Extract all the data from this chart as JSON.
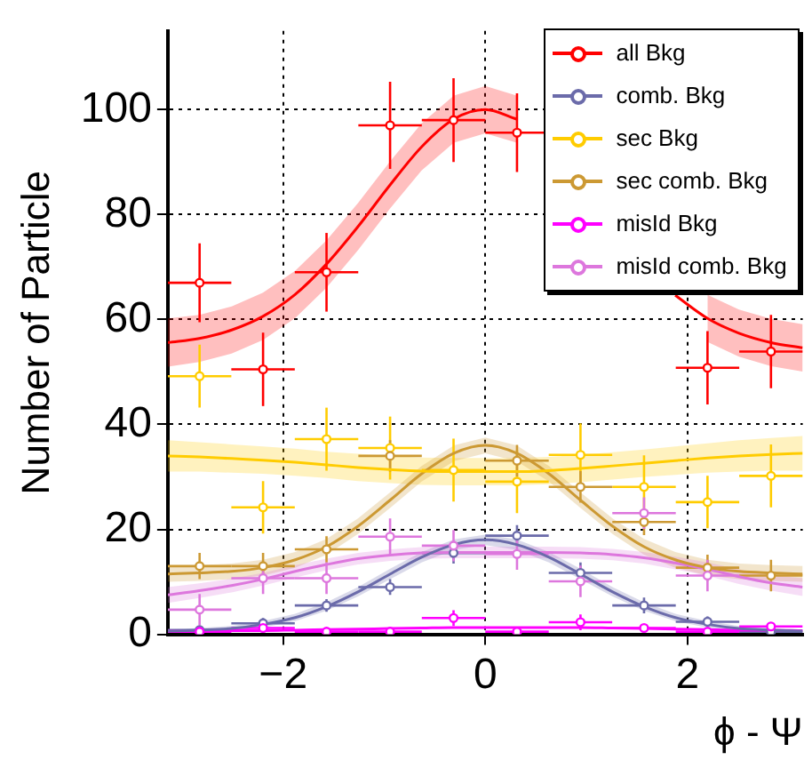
{
  "chart_data": {
    "type": "scatter",
    "xlabel": "ϕ - Ψ",
    "ylabel": "Number of Particle",
    "xlim": [
      -3.1416,
      3.1416
    ],
    "xticks": [
      -2,
      0,
      2
    ],
    "ylim": [
      0,
      115
    ],
    "yticks": [
      0,
      20,
      40,
      60,
      80,
      100
    ],
    "grid": true,
    "legend": "top right",
    "marker": "circle",
    "series": [
      {
        "name": "all Bkg",
        "color": "#ff0000",
        "x": [
          -2.827,
          -2.199,
          -1.571,
          -0.942,
          -0.314,
          0.314,
          0.942,
          1.571,
          2.199,
          2.827
        ],
        "values": [
          67,
          50.5,
          69,
          97,
          98,
          95.6,
          null,
          null,
          50.8,
          53.9
        ],
        "errors": [
          7.5,
          7,
          7.5,
          8.3,
          8,
          7.5,
          null,
          null,
          7,
          7
        ],
        "xerrors": [
          0.314,
          0.314,
          0.314,
          0.314,
          0.314,
          0.314,
          null,
          null,
          0.314,
          0.314
        ]
      },
      {
        "name": "comb. Bkg",
        "color": "#6b6baa",
        "x": [
          -2.827,
          -2.199,
          -1.571,
          -0.942,
          -0.314,
          0.314,
          0.942,
          1.571,
          2.199,
          2.827
        ],
        "values": [
          0.8,
          2.1,
          5.5,
          9,
          15.5,
          18.8,
          11.7,
          5.5,
          2.4,
          0.5
        ],
        "errors": [
          null,
          1,
          1.2,
          1.5,
          2,
          2,
          2,
          1.5,
          1,
          null
        ],
        "xerrors": [
          0.314,
          0.314,
          0.314,
          0.314,
          0.314,
          0.314,
          0.314,
          0.314,
          0.314,
          0.314
        ]
      },
      {
        "name": "sec Bkg",
        "color": "#ffcc00",
        "x": [
          -2.827,
          -2.199,
          -1.571,
          -0.942,
          -0.314,
          0.314,
          0.942,
          1.571,
          2.199,
          2.827
        ],
        "values": [
          49.2,
          24.2,
          37.2,
          35.5,
          31.3,
          29.1,
          34.2,
          28.1,
          25.2,
          30.2
        ],
        "errors": [
          6,
          5,
          6,
          6,
          6,
          6,
          6,
          6,
          5,
          6
        ],
        "xerrors": [
          0.314,
          0.314,
          0.314,
          0.314,
          0.314,
          0.314,
          0.314,
          0.314,
          0.314,
          0.314
        ]
      },
      {
        "name": "sec comb. Bkg",
        "color": "#cc9933",
        "x": [
          -2.827,
          -2.199,
          -1.571,
          -0.942,
          -0.314,
          0.314,
          0.942,
          1.571,
          2.199,
          2.827
        ],
        "values": [
          13,
          13,
          16.2,
          34,
          null,
          33.1,
          28.1,
          21.4,
          12.7,
          11.2
        ],
        "errors": [
          2.5,
          2.5,
          2.5,
          3,
          null,
          3,
          3,
          2.5,
          2.5,
          3
        ],
        "xerrors": [
          0.314,
          0.314,
          0.314,
          0.314,
          null,
          0.314,
          0.314,
          0.314,
          0.314,
          0.314
        ]
      },
      {
        "name": "misId Bkg",
        "color": "#ff00ff",
        "x": [
          -2.827,
          -2.199,
          -1.571,
          -0.942,
          -0.314,
          0.314,
          0.942,
          1.571,
          2.199,
          2.827
        ],
        "values": [
          0.5,
          1.2,
          0.5,
          0.5,
          3.1,
          0.5,
          2.3,
          1.2,
          0.5,
          1.5
        ],
        "errors": [
          null,
          null,
          null,
          null,
          1.5,
          null,
          1.5,
          null,
          null,
          null
        ],
        "xerrors": [
          0.314,
          0.314,
          0.314,
          0.314,
          0.314,
          0.314,
          0.314,
          0.314,
          0.314,
          0.314
        ]
      },
      {
        "name": "misId comb. Bkg",
        "color": "#dd77dd",
        "x": [
          -2.827,
          -2.199,
          -1.571,
          -0.942,
          -0.314,
          0.314,
          0.942,
          1.571,
          2.199
        ],
        "values": [
          4.7,
          10.7,
          10.7,
          18.6,
          16.9,
          15.3,
          10.1,
          23.1,
          11.2
        ],
        "errors": [
          3,
          3,
          3,
          3.5,
          3,
          3,
          3,
          3,
          3
        ],
        "xerrors": [
          0.314,
          0.314,
          0.314,
          0.314,
          0.314,
          0.314,
          0.314,
          0.314,
          0.314
        ]
      },
      {
        "type": "line",
        "marker": "none",
        "color": "#ff0000",
        "x": [
          -3.14,
          -2.83,
          -2.51,
          -2.2,
          -1.88,
          -1.57,
          -1.26,
          -0.94,
          -0.63,
          -0.31,
          0,
          0.31,
          0.63,
          0.94,
          1.26,
          1.57,
          1.88,
          2.2,
          2.51,
          2.83,
          3.14
        ],
        "values": [
          55.6,
          56.4,
          58,
          60.6,
          64.8,
          70.6,
          77.7,
          85.7,
          92.9,
          98.2,
          100,
          98.2,
          null,
          null,
          null,
          null,
          64.6,
          60.2,
          57.4,
          55.6,
          54.6
        ],
        "lower": [
          51,
          51.9,
          53.5,
          56.1,
          60.3,
          66.1,
          73.2,
          81.2,
          88.4,
          93.7,
          95.5,
          93.7,
          null,
          null,
          null,
          null,
          null,
          55.7,
          52.9,
          51.1,
          50.1
        ],
        "upper": [
          60.2,
          60.9,
          62.5,
          65.1,
          69.3,
          75.1,
          82.2,
          90.2,
          97.4,
          102.7,
          104.5,
          102.7,
          null,
          null,
          null,
          null,
          null,
          64.7,
          61.9,
          60.1,
          59.1
        ]
      },
      {
        "type": "line",
        "marker": "none",
        "color": "#6b6baa",
        "x": [
          -3.14,
          -2.83,
          -2.51,
          -2.2,
          -1.88,
          -1.57,
          -1.26,
          -0.94,
          -0.63,
          -0.31,
          0,
          0.31,
          0.63,
          0.94,
          1.26,
          1.57,
          1.88,
          2.2,
          2.51,
          2.83,
          3.14
        ],
        "values": [
          0.6,
          0.8,
          1.1,
          1.9,
          3.2,
          5.3,
          8.1,
          11.5,
          14.7,
          17.1,
          18,
          17.1,
          14.7,
          11.5,
          8.1,
          5.3,
          3.2,
          1.9,
          1.1,
          0.8,
          0.6
        ],
        "lower": [
          0.3,
          0.4,
          0.6,
          1.3,
          2.5,
          4.5,
          7.2,
          10.5,
          13.7,
          16.1,
          17,
          16.1,
          13.7,
          10.5,
          7.2,
          4.5,
          2.5,
          1.3,
          0.6,
          0.4,
          0.3
        ],
        "upper": [
          0.9,
          1.2,
          1.6,
          2.5,
          3.9,
          6.1,
          9,
          12.5,
          15.7,
          18.1,
          19,
          18.1,
          15.7,
          12.5,
          9,
          6.1,
          3.9,
          2.5,
          1.6,
          1.2,
          0.9
        ]
      },
      {
        "type": "line",
        "marker": "none",
        "color": "#ffcc00",
        "x": [
          -3.14,
          -2.83,
          -2.51,
          -2.2,
          -1.88,
          -1.57,
          -1.26,
          -0.94,
          -0.63,
          -0.31,
          0,
          0.31,
          0.63,
          0.94,
          1.26,
          1.57,
          1.88,
          2.2,
          2.51,
          2.83,
          3.14
        ],
        "values": [
          34,
          33.8,
          33.5,
          33.2,
          32.8,
          32.3,
          31.8,
          31.4,
          31.1,
          31,
          31,
          31,
          31.2,
          31.6,
          32.1,
          32.6,
          33.1,
          33.6,
          34,
          34.3,
          34.5
        ],
        "lower": [
          31,
          31,
          30.8,
          30.6,
          30.2,
          29.8,
          29.2,
          28.8,
          28.5,
          28.4,
          28.4,
          28.4,
          28.6,
          29,
          29.5,
          30,
          30.4,
          30.8,
          31,
          31.2,
          31.2
        ],
        "upper": [
          37,
          36.6,
          36.2,
          35.8,
          35.4,
          34.8,
          34.4,
          34,
          33.7,
          33.6,
          33.6,
          33.6,
          33.8,
          34.2,
          34.7,
          35.2,
          35.8,
          36.4,
          37,
          37.4,
          37.8
        ]
      },
      {
        "type": "line",
        "marker": "none",
        "color": "#cc9933",
        "x": [
          -3.14,
          -2.83,
          -2.51,
          -2.2,
          -1.88,
          -1.57,
          -1.26,
          -0.94,
          -0.63,
          -0.31,
          0,
          0.31,
          0.63,
          0.94,
          1.26,
          1.57,
          1.88,
          2.2,
          2.51,
          2.83,
          3.14
        ],
        "values": [
          11.5,
          11.7,
          12,
          12.7,
          14.2,
          16.7,
          20.6,
          25.6,
          30.6,
          34.5,
          36,
          34.5,
          30.6,
          25.6,
          20.6,
          16.7,
          14.2,
          12.7,
          12,
          11.7,
          11.5
        ],
        "lower": [
          10,
          10.2,
          10.5,
          11.2,
          12.7,
          15.2,
          19.1,
          24.1,
          29.1,
          33,
          34.5,
          33,
          29.1,
          24.1,
          19.1,
          15.2,
          12.7,
          11.2,
          10.5,
          10.2,
          10
        ],
        "upper": [
          13,
          13.2,
          13.5,
          14.2,
          15.7,
          18.2,
          22.1,
          27.1,
          32.1,
          36,
          37.5,
          36,
          32.1,
          27.1,
          22.1,
          18.2,
          15.7,
          14.2,
          13.5,
          13.2,
          13
        ]
      },
      {
        "type": "line",
        "marker": "none",
        "color": "#ff00ff",
        "x": [
          -3.14,
          -2.83,
          -2.51,
          -2.2,
          -1.88,
          -1.57,
          -1.26,
          -0.94,
          -0.63,
          -0.31,
          0,
          0.31,
          0.63,
          0.94,
          1.26,
          1.57,
          1.88,
          2.2,
          2.51,
          2.83,
          3.14
        ],
        "values": [
          0.6,
          0.6,
          0.7,
          0.7,
          0.8,
          0.9,
          1,
          1.1,
          1.2,
          1.3,
          1.3,
          1.3,
          1.3,
          1.3,
          1.2,
          1.1,
          1,
          0.9,
          0.8,
          0.8,
          0.7
        ]
      },
      {
        "type": "line",
        "marker": "none",
        "color": "#dd77dd",
        "x": [
          -3.14,
          -2.83,
          -2.51,
          -2.2,
          -1.88,
          -1.57,
          -1.26,
          -0.94,
          -0.63,
          -0.31,
          0,
          0.31,
          0.63,
          0.94,
          1.26,
          1.57,
          1.88,
          2.2,
          2.51,
          2.83,
          3.14
        ],
        "values": [
          7.5,
          8.3,
          9.3,
          10.5,
          12,
          13.3,
          14.4,
          15.1,
          15.5,
          15.6,
          15.6,
          15.6,
          15.6,
          15.5,
          15.2,
          14.6,
          13.6,
          12.4,
          11,
          9.8,
          9
        ],
        "lower": [
          6,
          6.9,
          8,
          9.3,
          10.8,
          12.2,
          13.3,
          14,
          14.4,
          14.5,
          14.5,
          14.5,
          14.5,
          14.4,
          14.1,
          13.5,
          12.4,
          11.1,
          9.6,
          8.3,
          7.3
        ],
        "upper": [
          9,
          9.7,
          10.6,
          11.7,
          13.2,
          14.4,
          15.5,
          16.2,
          16.6,
          16.7,
          16.7,
          16.7,
          16.7,
          16.6,
          16.3,
          15.7,
          14.8,
          13.7,
          12.4,
          11.3,
          10.7
        ]
      }
    ]
  }
}
